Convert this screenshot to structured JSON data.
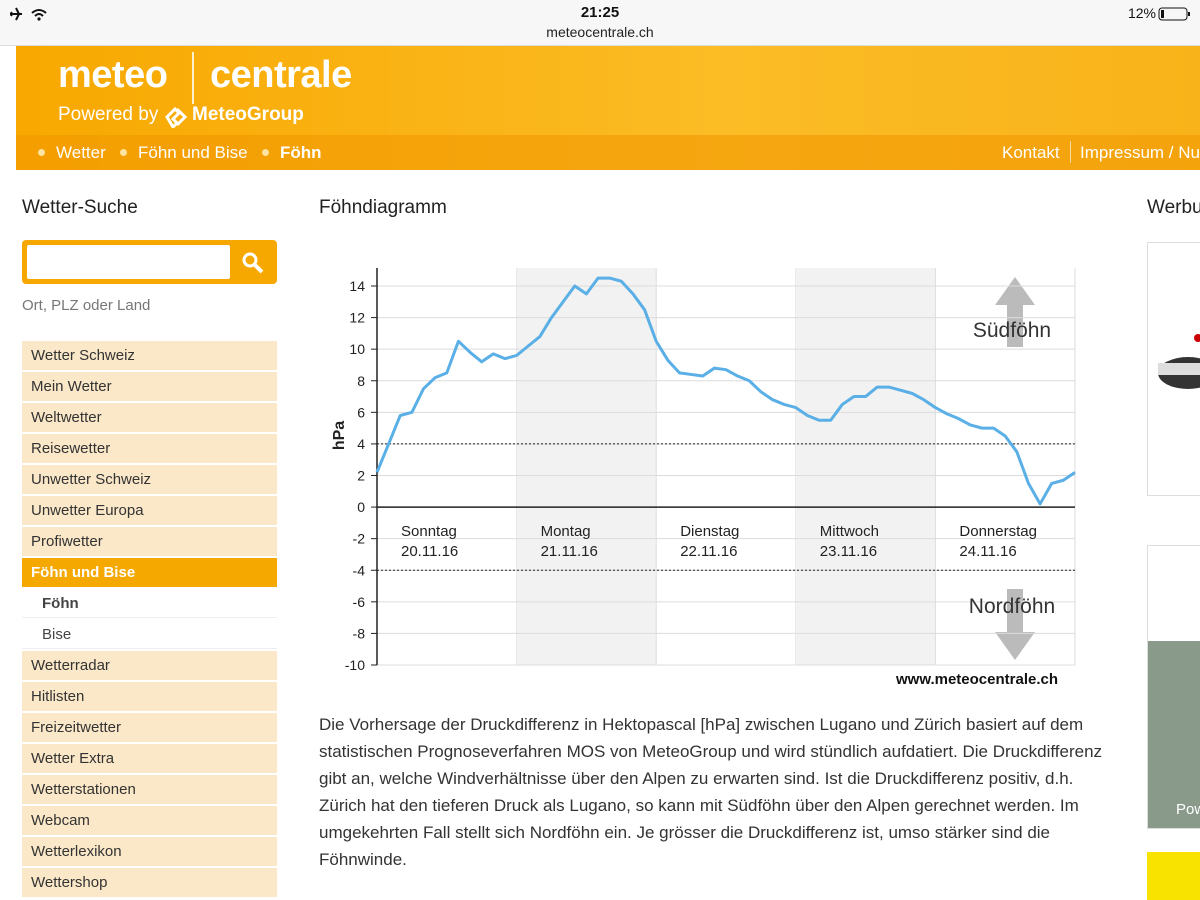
{
  "status_bar": {
    "time": "21:25",
    "url": "meteocentrale.ch",
    "battery": "12%"
  },
  "header": {
    "logo_left": "meteo",
    "logo_right": "centrale",
    "powered_by": "Powered by",
    "group": "MeteoGroup",
    "breadcrumb": [
      "Wetter",
      "Föhn und Bise",
      "Föhn"
    ],
    "links": [
      "Kontakt",
      "Impressum / Nu"
    ]
  },
  "sidebar": {
    "title": "Wetter-Suche",
    "hint": "Ort, PLZ oder Land",
    "menu": [
      {
        "label": "Wetter Schweiz"
      },
      {
        "label": "Mein Wetter"
      },
      {
        "label": "Weltwetter"
      },
      {
        "label": "Reisewetter"
      },
      {
        "label": "Unwetter Schweiz"
      },
      {
        "label": "Unwetter Europa"
      },
      {
        "label": "Profiwetter"
      },
      {
        "label": "Föhn und Bise",
        "active": true
      },
      {
        "label": "Föhn",
        "sub": true,
        "current": true
      },
      {
        "label": "Bise",
        "sub": true
      },
      {
        "label": "Wetterradar"
      },
      {
        "label": "Hitlisten"
      },
      {
        "label": "Freizeitwetter"
      },
      {
        "label": "Wetter Extra"
      },
      {
        "label": "Wetterstationen"
      },
      {
        "label": "Webcam"
      },
      {
        "label": "Wetterlexikon"
      },
      {
        "label": "Wettershop"
      }
    ]
  },
  "chart_data": {
    "type": "line",
    "title": "Föhndiagramm",
    "ylabel": "hPa",
    "days": [
      {
        "name": "Sonntag",
        "date": "20.11.16"
      },
      {
        "name": "Montag",
        "date": "21.11.16"
      },
      {
        "name": "Dienstag",
        "date": "22.11.16"
      },
      {
        "name": "Mittwoch",
        "date": "23.11.16"
      },
      {
        "name": "Donnerstag",
        "date": "24.11.16"
      }
    ],
    "color": "#5aafe6",
    "values": [
      2.2,
      4,
      5.8,
      6,
      7.5,
      8.2,
      8.5,
      10.5,
      9.8,
      9.2,
      9.7,
      9.4,
      9.6,
      10.2,
      10.8,
      12,
      13,
      14,
      13.5,
      14.5,
      14.5,
      14.3,
      13.5,
      12.5,
      10.5,
      9.3,
      8.5,
      8.4,
      8.3,
      8.8,
      8.7,
      8.3,
      8,
      7.3,
      6.8,
      6.5,
      6.3,
      5.8,
      5.5,
      5.5,
      6.5,
      7,
      7,
      7.6,
      7.6,
      7.4,
      7.2,
      6.8,
      6.3,
      5.9,
      5.6,
      5.2,
      5,
      5,
      4.5,
      3.5,
      1.5,
      0.2,
      1.5,
      1.7,
      2.2
    ],
    "ylim": [
      -10,
      14
    ],
    "yticks": [
      -10,
      -8,
      -6,
      -4,
      -2,
      0,
      2,
      4,
      6,
      8,
      10,
      12,
      14
    ],
    "grid": true,
    "thresholds": [
      4,
      -4
    ],
    "annotations": [
      "Südföhn",
      "Nordföhn"
    ],
    "source": "www.meteocentrale.ch"
  },
  "main": {
    "description": "Die Vorhersage der Druckdifferenz in Hektopascal [hPa] zwischen Lugano und Zürich basiert auf dem statistischen Prognoseverfahren MOS von MeteoGroup und wird stündlich aufdatiert. Die Druckdifferenz gibt an, welche Windverhältnisse über den Alpen zu erwarten sind. Ist die Druckdifferenz positiv, d.h. Zürich hat den tieferen Druck als Lugano, so kann mit Südföhn über den Alpen gerechnet werden. Im umgekehrten Fall stellt sich Nordföhn ein. Je grösser die Druckdifferenz ist, umso stärker sind die Föhnwinde."
  },
  "right": {
    "title": "Werbu",
    "ad_text": "Pow"
  }
}
